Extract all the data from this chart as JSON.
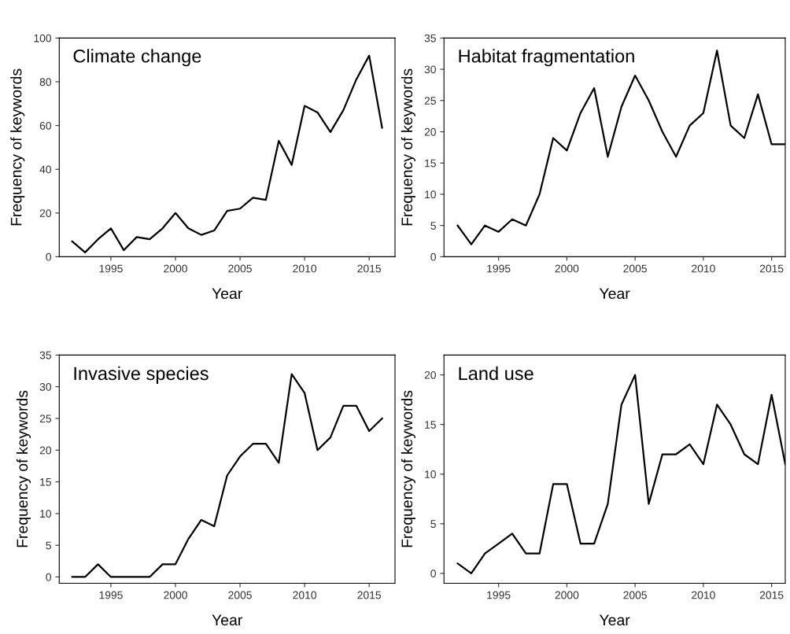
{
  "chart_data": [
    {
      "type": "line",
      "title": "Climate change",
      "xlabel": "Year",
      "ylabel": "Frequency of keywords",
      "xlim": [
        1991,
        2017
      ],
      "xticks": [
        1995,
        2000,
        2005,
        2010,
        2015
      ],
      "ylim": [
        0,
        100
      ],
      "yticks": [
        0,
        20,
        40,
        60,
        80,
        100
      ],
      "grid": false,
      "legend": false,
      "marker": "none",
      "line_style": "solid",
      "x": [
        1992,
        1993,
        1994,
        1995,
        1996,
        1997,
        1998,
        1999,
        2000,
        2001,
        2002,
        2003,
        2004,
        2005,
        2006,
        2007,
        2008,
        2009,
        2010,
        2011,
        2012,
        2013,
        2014,
        2015,
        2016
      ],
      "series": [
        {
          "color": "#000000",
          "values": [
            7,
            2,
            8,
            13,
            3,
            9,
            8,
            13,
            20,
            13,
            10,
            12,
            21,
            22,
            27,
            26,
            53,
            42,
            69,
            66,
            57,
            67,
            81,
            92,
            59
          ]
        }
      ]
    },
    {
      "type": "line",
      "title": "Habitat fragmentation",
      "xlabel": "Year",
      "ylabel": "Frequency of keywords",
      "xlim": [
        1991,
        2016
      ],
      "xticks": [
        1995,
        2000,
        2005,
        2010,
        2015
      ],
      "ylim": [
        0,
        35
      ],
      "yticks": [
        0,
        5,
        10,
        15,
        20,
        25,
        30,
        35
      ],
      "grid": false,
      "legend": false,
      "marker": "none",
      "line_style": "solid",
      "x": [
        1992,
        1993,
        1994,
        1995,
        1996,
        1997,
        1998,
        1999,
        2000,
        2001,
        2002,
        2003,
        2004,
        2005,
        2006,
        2007,
        2008,
        2009,
        2010,
        2011,
        2012,
        2013,
        2014,
        2015,
        2016
      ],
      "series": [
        {
          "color": "#000000",
          "values": [
            5,
            2,
            5,
            4,
            6,
            5,
            10,
            19,
            17,
            23,
            27,
            16,
            24,
            29,
            25,
            20,
            16,
            21,
            23,
            33,
            21,
            19,
            26,
            18,
            18
          ]
        }
      ]
    },
    {
      "type": "line",
      "title": "Invasive species",
      "xlabel": "Year",
      "ylabel": "Frequency of keywords",
      "xlim": [
        1991,
        2017
      ],
      "xticks": [
        1995,
        2000,
        2005,
        2010,
        2015
      ],
      "ylim": [
        -1,
        35
      ],
      "yticks": [
        0,
        5,
        10,
        15,
        20,
        25,
        30,
        35
      ],
      "grid": false,
      "legend": false,
      "marker": "none",
      "line_style": "solid",
      "x": [
        1992,
        1993,
        1994,
        1995,
        1996,
        1997,
        1998,
        1999,
        2000,
        2001,
        2002,
        2003,
        2004,
        2005,
        2006,
        2007,
        2008,
        2009,
        2010,
        2011,
        2012,
        2013,
        2014,
        2015,
        2016
      ],
      "series": [
        {
          "color": "#000000",
          "values": [
            0,
            0,
            2,
            0,
            0,
            0,
            0,
            2,
            2,
            6,
            9,
            8,
            16,
            19,
            21,
            21,
            18,
            32,
            29,
            20,
            22,
            27,
            27,
            23,
            25
          ]
        }
      ]
    },
    {
      "type": "line",
      "title": "Land use",
      "xlabel": "Year",
      "ylabel": "Frequency of keywords",
      "xlim": [
        1991,
        2016
      ],
      "xticks": [
        1995,
        2000,
        2005,
        2010,
        2015
      ],
      "ylim": [
        -1,
        22
      ],
      "yticks": [
        0,
        5,
        10,
        15,
        20
      ],
      "grid": false,
      "legend": false,
      "marker": "none",
      "line_style": "solid",
      "x": [
        1992,
        1993,
        1994,
        1995,
        1996,
        1997,
        1998,
        1999,
        2000,
        2001,
        2002,
        2003,
        2004,
        2005,
        2006,
        2007,
        2008,
        2009,
        2010,
        2011,
        2012,
        2013,
        2014,
        2015,
        2016
      ],
      "series": [
        {
          "color": "#000000",
          "values": [
            1,
            0,
            2,
            3,
            4,
            2,
            2,
            9,
            9,
            3,
            3,
            7,
            17,
            20,
            7,
            12,
            12,
            13,
            11,
            17,
            15,
            12,
            11,
            18,
            11
          ]
        }
      ]
    }
  ]
}
